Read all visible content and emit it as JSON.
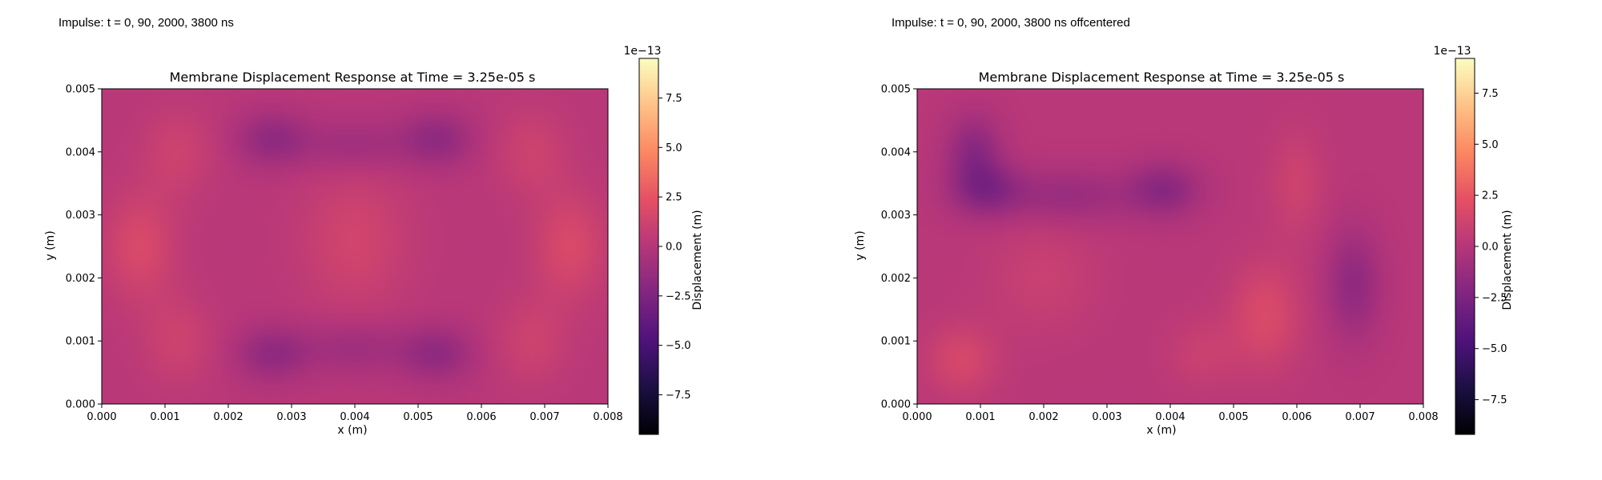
{
  "captions": {
    "left": "Impulse: t = 0, 90, 2000, 3800 ns",
    "right": "Impulse: t = 0, 90, 2000, 3800 ns offcentered"
  },
  "colormap": "magma",
  "chart_data": [
    {
      "type": "heatmap",
      "title": "Membrane Displacement Response at Time = 3.25e-05 s",
      "xlabel": "x (m)",
      "ylabel": "y (m)",
      "xlim": [
        0.0,
        0.008
      ],
      "ylim": [
        0.0,
        0.005
      ],
      "xticks": [
        "0.000",
        "0.001",
        "0.002",
        "0.003",
        "0.004",
        "0.005",
        "0.006",
        "0.007",
        "0.008"
      ],
      "yticks": [
        "0.000",
        "0.001",
        "0.002",
        "0.003",
        "0.004",
        "0.005"
      ],
      "colorbar": {
        "label": "Displacement (m)",
        "multiplier": "1e−13",
        "range": [
          -9.5e-13,
          9.5e-13
        ],
        "tick_values": [
          -7.5,
          -5.0,
          -2.5,
          0.0,
          2.5,
          5.0,
          7.5
        ],
        "tick_labels": [
          "−7.5",
          "−5.0",
          "−2.5",
          "0.0",
          "2.5",
          "5.0",
          "7.5"
        ]
      },
      "features": [
        {
          "x": 0.0006,
          "y": 0.0025,
          "amp": 1.6e-13,
          "sx": 0.0004,
          "sy": 0.0006
        },
        {
          "x": 0.0012,
          "y": 0.004,
          "amp": 1e-13,
          "sx": 0.0004,
          "sy": 0.0005
        },
        {
          "x": 0.0012,
          "y": 0.001,
          "amp": 1e-13,
          "sx": 0.0004,
          "sy": 0.0005
        },
        {
          "x": 0.0074,
          "y": 0.0025,
          "amp": 1.6e-13,
          "sx": 0.0004,
          "sy": 0.0006
        },
        {
          "x": 0.0068,
          "y": 0.004,
          "amp": 1e-13,
          "sx": 0.0004,
          "sy": 0.0005
        },
        {
          "x": 0.0068,
          "y": 0.001,
          "amp": 1e-13,
          "sx": 0.0004,
          "sy": 0.0005
        },
        {
          "x": 0.004,
          "y": 0.0026,
          "amp": 1.2e-13,
          "sx": 0.0006,
          "sy": 0.0008
        },
        {
          "x": 0.0027,
          "y": 0.0042,
          "amp": -1.8e-13,
          "sx": 0.0004,
          "sy": 0.0003
        },
        {
          "x": 0.0053,
          "y": 0.0042,
          "amp": -1.8e-13,
          "sx": 0.0004,
          "sy": 0.0003
        },
        {
          "x": 0.004,
          "y": 0.0041,
          "amp": -1.2e-13,
          "sx": 0.0006,
          "sy": 0.0003
        },
        {
          "x": 0.0027,
          "y": 0.0008,
          "amp": -1.8e-13,
          "sx": 0.0004,
          "sy": 0.0003
        },
        {
          "x": 0.0053,
          "y": 0.0008,
          "amp": -1.8e-13,
          "sx": 0.0004,
          "sy": 0.0003
        },
        {
          "x": 0.004,
          "y": 0.0009,
          "amp": -1.2e-13,
          "sx": 0.0006,
          "sy": 0.0003
        }
      ]
    },
    {
      "type": "heatmap",
      "title": "Membrane Displacement Response at Time = 3.25e-05 s",
      "xlabel": "x (m)",
      "ylabel": "y (m)",
      "xlim": [
        0.0,
        0.008
      ],
      "ylim": [
        0.0,
        0.005
      ],
      "xticks": [
        "0.000",
        "0.001",
        "0.002",
        "0.003",
        "0.004",
        "0.005",
        "0.006",
        "0.007",
        "0.008"
      ],
      "yticks": [
        "0.000",
        "0.001",
        "0.002",
        "0.003",
        "0.004",
        "0.005"
      ],
      "colorbar": {
        "label": "Displacement (m)",
        "multiplier": "1e−13",
        "range": [
          -9.2e-13,
          9.2e-13
        ],
        "tick_values": [
          -7.5,
          -5.0,
          -2.5,
          0.0,
          2.5,
          5.0,
          7.5
        ],
        "tick_labels": [
          "−7.5",
          "−5.0",
          "−2.5",
          "0.0",
          "2.5",
          "5.0",
          "7.5"
        ]
      },
      "features": [
        {
          "x": 0.0009,
          "y": 0.004,
          "amp": -2e-13,
          "sx": 0.0003,
          "sy": 0.0004
        },
        {
          "x": 0.0011,
          "y": 0.0034,
          "amp": -2.2e-13,
          "sx": 0.0004,
          "sy": 0.0003
        },
        {
          "x": 0.0024,
          "y": 0.0033,
          "amp": -1.4e-13,
          "sx": 0.0007,
          "sy": 0.0003
        },
        {
          "x": 0.0039,
          "y": 0.0034,
          "amp": -2e-13,
          "sx": 0.0004,
          "sy": 0.0003
        },
        {
          "x": 0.0069,
          "y": 0.0019,
          "amp": -1.8e-13,
          "sx": 0.0003,
          "sy": 0.0006
        },
        {
          "x": 0.0055,
          "y": 0.0014,
          "amp": 1.6e-13,
          "sx": 0.0004,
          "sy": 0.0006
        },
        {
          "x": 0.006,
          "y": 0.0035,
          "amp": 1e-13,
          "sx": 0.0003,
          "sy": 0.0006
        },
        {
          "x": 0.0007,
          "y": 0.0007,
          "amp": 1.4e-13,
          "sx": 0.0004,
          "sy": 0.0004
        },
        {
          "x": 0.002,
          "y": 0.002,
          "amp": 8e-14,
          "sx": 0.0006,
          "sy": 0.0006
        },
        {
          "x": 0.0045,
          "y": 0.0008,
          "amp": 8e-14,
          "sx": 0.0004,
          "sy": 0.0004
        }
      ]
    }
  ]
}
